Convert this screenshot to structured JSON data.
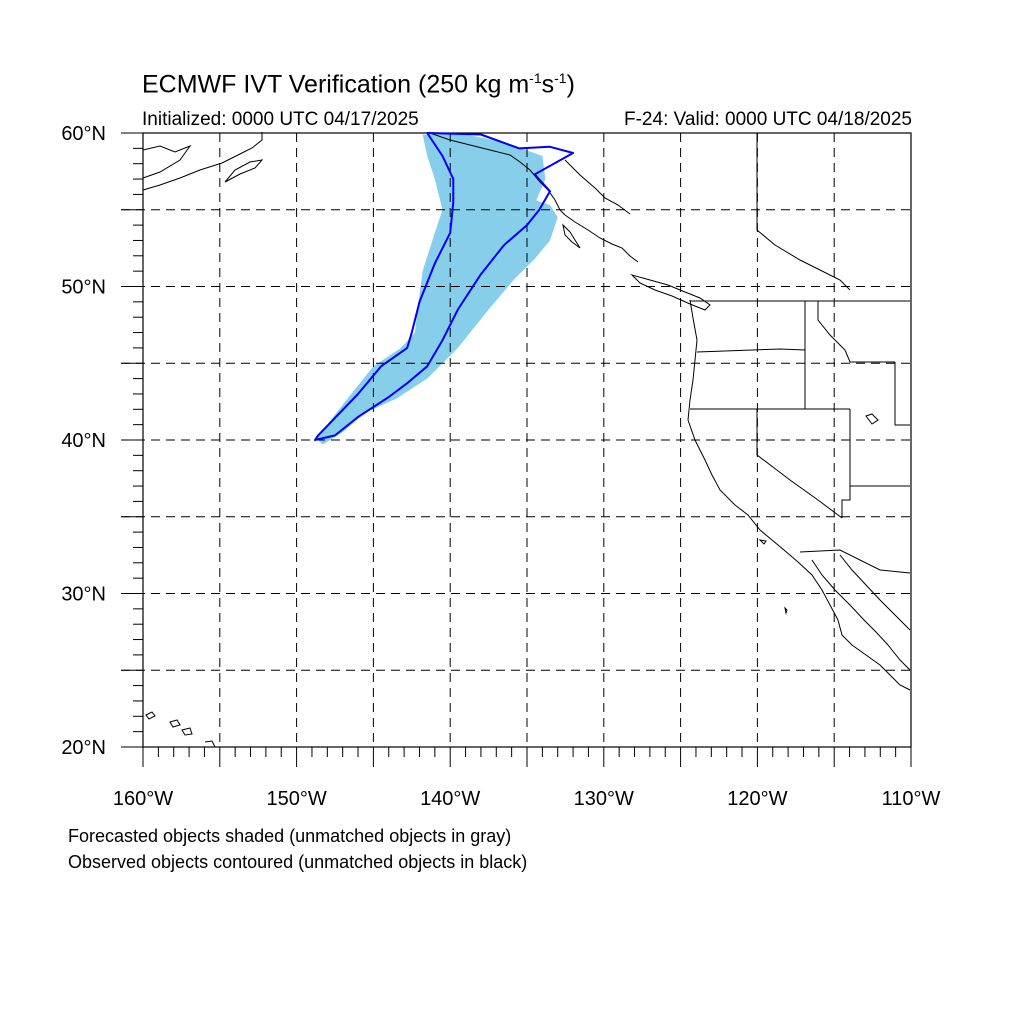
{
  "title": {
    "main": "ECMWF IVT Verification (250 kg m",
    "exp1": "-1",
    "mid": "s",
    "exp2": "-1",
    "close": ")"
  },
  "subtitle": {
    "left": "Initialized: 0000 UTC 04/17/2025",
    "right": "F-24: Valid: 0000 UTC 04/18/2025"
  },
  "map": {
    "lon_range": [
      -160,
      -110
    ],
    "lat_range": [
      20,
      60
    ],
    "lon_tick_labels": [
      {
        "value": -160,
        "label": "160°W"
      },
      {
        "value": -150,
        "label": "150°W"
      },
      {
        "value": -140,
        "label": "140°W"
      },
      {
        "value": -130,
        "label": "130°W"
      },
      {
        "value": -120,
        "label": "120°W"
      },
      {
        "value": -110,
        "label": "110°W"
      }
    ],
    "lat_tick_labels": [
      {
        "value": 60,
        "label": "60°N"
      },
      {
        "value": 50,
        "label": "50°N"
      },
      {
        "value": 40,
        "label": "40°N"
      },
      {
        "value": 30,
        "label": "30°N"
      },
      {
        "value": 20,
        "label": "20°N"
      }
    ],
    "grid_lons": [
      -155,
      -150,
      -145,
      -140,
      -135,
      -130,
      -125,
      -120,
      -115
    ],
    "grid_lats": [
      25,
      30,
      35,
      40,
      45,
      50,
      55
    ],
    "colors": {
      "forecast_fill": "#87ceeb",
      "observed_contour": "#0000ff",
      "coastline": "#000000",
      "grid": "#000000"
    },
    "forecast_object_polygon": [
      [
        -141.8,
        59.9
      ],
      [
        -139.0,
        59.9
      ],
      [
        -136.5,
        59.4
      ],
      [
        -134.0,
        58.5
      ],
      [
        -133.8,
        57.0
      ],
      [
        -134.4,
        55.6
      ],
      [
        -133.5,
        55.3
      ],
      [
        -133.0,
        54.5
      ],
      [
        -133.5,
        53.0
      ],
      [
        -134.5,
        51.8
      ],
      [
        -135.8,
        50.5
      ],
      [
        -137.5,
        48.5
      ],
      [
        -139.5,
        46.0
      ],
      [
        -141.5,
        44.0
      ],
      [
        -143.5,
        42.7
      ],
      [
        -145.5,
        41.8
      ],
      [
        -147.0,
        40.5
      ],
      [
        -148.3,
        39.7
      ],
      [
        -148.7,
        40.1
      ],
      [
        -147.0,
        42.3
      ],
      [
        -145.0,
        44.8
      ],
      [
        -143.2,
        46.0
      ],
      [
        -142.3,
        47.0
      ],
      [
        -142.0,
        49.5
      ],
      [
        -141.8,
        51.0
      ],
      [
        -141.0,
        53.5
      ],
      [
        -140.5,
        55.0
      ],
      [
        -141.0,
        57.0
      ],
      [
        -141.5,
        58.5
      ]
    ],
    "observed_object_polygon": [
      [
        -141.5,
        60.0
      ],
      [
        -138.0,
        59.9
      ],
      [
        -135.5,
        59.0
      ],
      [
        -133.5,
        59.1
      ],
      [
        -132.0,
        58.7
      ],
      [
        -134.5,
        57.3
      ],
      [
        -133.5,
        56.2
      ],
      [
        -134.2,
        55.0
      ],
      [
        -135.0,
        54.0
      ],
      [
        -136.5,
        52.7
      ],
      [
        -138.0,
        50.8
      ],
      [
        -139.5,
        48.5
      ],
      [
        -140.5,
        46.5
      ],
      [
        -141.5,
        44.8
      ],
      [
        -142.8,
        43.7
      ],
      [
        -144.0,
        42.8
      ],
      [
        -146.0,
        41.5
      ],
      [
        -147.5,
        40.3
      ],
      [
        -148.8,
        40.0
      ],
      [
        -148.6,
        40.3
      ],
      [
        -146.0,
        43.0
      ],
      [
        -144.5,
        44.8
      ],
      [
        -142.8,
        46.0
      ],
      [
        -142.5,
        47.0
      ],
      [
        -142.0,
        49.0
      ],
      [
        -141.0,
        51.5
      ],
      [
        -140.0,
        53.5
      ],
      [
        -139.8,
        55.5
      ],
      [
        -139.8,
        57.0
      ],
      [
        -140.5,
        58.5
      ]
    ]
  },
  "footnotes": {
    "line1": "Forecasted objects shaded (unmatched objects in gray)",
    "line2": "Observed objects contoured (unmatched objects in black)"
  }
}
